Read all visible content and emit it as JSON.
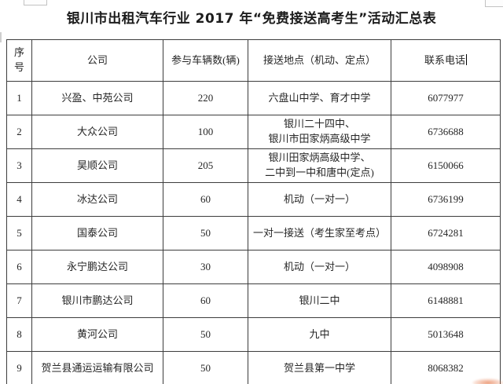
{
  "title": "银川市出租汽车行业 2017 年“免费接送高考生”活动汇总表",
  "table": {
    "columns": [
      "序号",
      "公司",
      "参与车辆数(辆)",
      "接送地点（机动、定点）",
      "联系电话"
    ],
    "rows": [
      {
        "no": "1",
        "company": "兴盈、中苑公司",
        "vehicles": "220",
        "location": "六盘山中学、育才中学",
        "phone": "6077977"
      },
      {
        "no": "2",
        "company": "大众公司",
        "vehicles": "100",
        "location": "银川二十四中、\n银川市田家炳高级中学",
        "phone": "6736688"
      },
      {
        "no": "3",
        "company": "昊顺公司",
        "vehicles": "205",
        "location": "银川田家炳高级中学、\n二中到一中和唐中(定点)",
        "phone": "6150066"
      },
      {
        "no": "4",
        "company": "冰达公司",
        "vehicles": "60",
        "location": "机动（一对一）",
        "phone": "6736199"
      },
      {
        "no": "5",
        "company": "国泰公司",
        "vehicles": "50",
        "location": "一对一接送（考生家至考点）",
        "phone": "6724281"
      },
      {
        "no": "6",
        "company": "永宁鹏达公司",
        "vehicles": "30",
        "location": "机动（一对一）",
        "phone": "4098908"
      },
      {
        "no": "7",
        "company": "银川市鹏达公司",
        "vehicles": "60",
        "location": "银川二中",
        "phone": "6148881"
      },
      {
        "no": "8",
        "company": "黄河公司",
        "vehicles": "50",
        "location": "九中",
        "phone": "5013648"
      },
      {
        "no": "9",
        "company": "贺兰县通运运输有限公司",
        "vehicles": "50",
        "location": "贺兰县第一中学",
        "phone": "8068382"
      }
    ]
  },
  "colors": {
    "border": "#3d3d3d",
    "text": "#262626",
    "title_text": "#1c1c1c",
    "smudge_accent": "#e8855a",
    "background": "#ffffff"
  }
}
